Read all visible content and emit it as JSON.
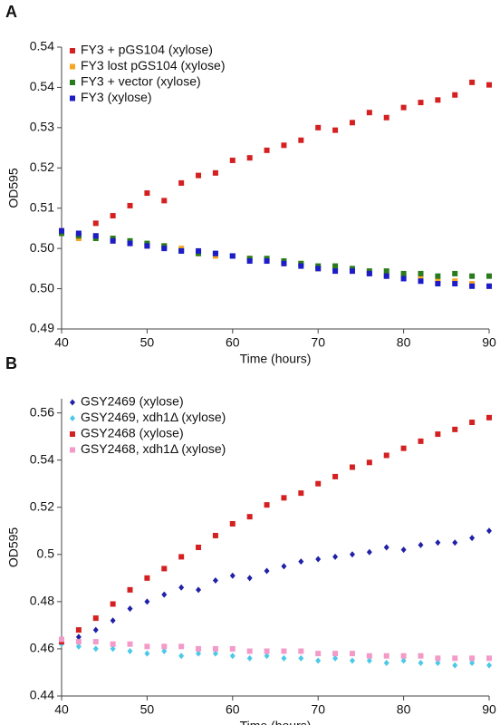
{
  "chart_data": [
    {
      "type": "scatter",
      "title": "A",
      "x_label": "Time (hours)",
      "y_label": "OD595",
      "x": [
        40,
        42,
        44,
        46,
        48,
        50,
        52,
        54,
        56,
        58,
        60,
        62,
        64,
        66,
        68,
        70,
        72,
        74,
        76,
        78,
        80,
        82,
        84,
        86,
        88,
        90
      ],
      "xlim": [
        40,
        90
      ],
      "xticks": [
        40,
        50,
        60,
        70,
        80,
        90
      ],
      "ylim": [
        0.488,
        0.544
      ],
      "yticks": [
        {
          "value": 0.488,
          "label": "0.49"
        },
        {
          "value": 0.496,
          "label": "0.50"
        },
        {
          "value": 0.504,
          "label": "0.50"
        },
        {
          "value": 0.512,
          "label": "0.51"
        },
        {
          "value": 0.52,
          "label": "0.52"
        },
        {
          "value": 0.528,
          "label": "0.53"
        },
        {
          "value": 0.536,
          "label": "0.54"
        },
        {
          "value": 0.544,
          "label": "0.54"
        }
      ],
      "legend": "upper left",
      "series": [
        {
          "name": "FY3 + pGS104 (xylose)",
          "color": "#d42020",
          "marker": "square",
          "values": [
            0.5075,
            0.5065,
            0.509,
            0.5105,
            0.5125,
            0.515,
            0.5135,
            0.517,
            0.5185,
            0.519,
            0.5215,
            0.522,
            0.5235,
            0.5245,
            0.5255,
            0.528,
            0.5275,
            0.529,
            0.531,
            0.53,
            0.532,
            0.533,
            0.5335,
            0.5345,
            0.537,
            0.5365
          ]
        },
        {
          "name": "FY3 lost pGS104 (xylose)",
          "color": "#f5a623",
          "marker": "square",
          "values": [
            0.5075,
            0.506,
            0.5065,
            0.5055,
            0.505,
            0.5045,
            0.5045,
            0.504,
            0.503,
            0.5025,
            0.5025,
            0.502,
            0.5015,
            0.501,
            0.501,
            0.5,
            0.5,
            0.4995,
            0.499,
            0.4985,
            0.4985,
            0.498,
            0.4975,
            0.4975,
            0.497,
            0.4965
          ]
        },
        {
          "name": "FY3 + vector (xylose)",
          "color": "#2a7a1e",
          "marker": "square",
          "values": [
            0.507,
            0.5065,
            0.506,
            0.506,
            0.5055,
            0.505,
            0.5045,
            0.5035,
            0.503,
            0.503,
            0.5025,
            0.502,
            0.502,
            0.5015,
            0.501,
            0.5005,
            0.5005,
            0.5,
            0.4995,
            0.4995,
            0.499,
            0.499,
            0.4985,
            0.499,
            0.4985,
            0.4985
          ]
        },
        {
          "name": "FY3 (xylose)",
          "color": "#1c1cc8",
          "marker": "square",
          "values": [
            0.5075,
            0.507,
            0.5065,
            0.5055,
            0.505,
            0.5045,
            0.504,
            0.5035,
            0.5035,
            0.503,
            0.5025,
            0.5015,
            0.5015,
            0.501,
            0.5005,
            0.5,
            0.4995,
            0.4995,
            0.499,
            0.4985,
            0.498,
            0.4975,
            0.497,
            0.497,
            0.4965,
            0.4965
          ]
        }
      ]
    },
    {
      "type": "scatter",
      "title": "B",
      "x_label": "Time (hours)",
      "y_label": "OD595",
      "x": [
        40,
        42,
        44,
        46,
        48,
        50,
        52,
        54,
        56,
        58,
        60,
        62,
        64,
        66,
        68,
        70,
        72,
        74,
        76,
        78,
        80,
        82,
        84,
        86,
        88,
        90
      ],
      "xlim": [
        40,
        90
      ],
      "xticks": [
        40,
        50,
        60,
        70,
        80,
        90
      ],
      "ylim": [
        0.44,
        0.566
      ],
      "yticks": [
        0.44,
        0.46,
        0.48,
        0.5,
        0.52,
        0.54,
        0.56
      ],
      "legend": "upper left",
      "series": [
        {
          "name": "GSY2469 (xylose)",
          "color": "#2020a8",
          "marker": "diamond",
          "values": [
            0.463,
            0.465,
            0.468,
            0.472,
            0.477,
            0.48,
            0.483,
            0.486,
            0.485,
            0.489,
            0.491,
            0.49,
            0.493,
            0.495,
            0.497,
            0.498,
            0.499,
            0.5,
            0.501,
            0.503,
            0.502,
            0.504,
            0.505,
            0.505,
            0.507,
            0.51
          ]
        },
        {
          "name": "GSY2469, xdh1Δ  (xylose)",
          "color": "#4cc8e8",
          "marker": "diamond",
          "values": [
            0.462,
            0.461,
            0.46,
            0.46,
            0.459,
            0.458,
            0.459,
            0.457,
            0.458,
            0.458,
            0.457,
            0.456,
            0.457,
            0.456,
            0.456,
            0.455,
            0.456,
            0.455,
            0.455,
            0.454,
            0.455,
            0.454,
            0.454,
            0.453,
            0.454,
            0.453
          ]
        },
        {
          "name": "GSY2468 (xylose)",
          "color": "#d42020",
          "marker": "square",
          "values": [
            0.463,
            0.468,
            0.473,
            0.479,
            0.485,
            0.49,
            0.494,
            0.499,
            0.503,
            0.508,
            0.513,
            0.516,
            0.521,
            0.524,
            0.526,
            0.53,
            0.533,
            0.537,
            0.539,
            0.542,
            0.545,
            0.548,
            0.551,
            0.553,
            0.556,
            0.558
          ]
        },
        {
          "name": "GSY2468, xdh1Δ  (xylose)",
          "color": "#f29ac8",
          "marker": "square",
          "values": [
            0.464,
            0.463,
            0.463,
            0.462,
            0.462,
            0.461,
            0.461,
            0.461,
            0.46,
            0.46,
            0.46,
            0.459,
            0.459,
            0.459,
            0.459,
            0.458,
            0.458,
            0.458,
            0.457,
            0.457,
            0.457,
            0.457,
            0.456,
            0.456,
            0.456,
            0.456
          ]
        }
      ]
    }
  ]
}
